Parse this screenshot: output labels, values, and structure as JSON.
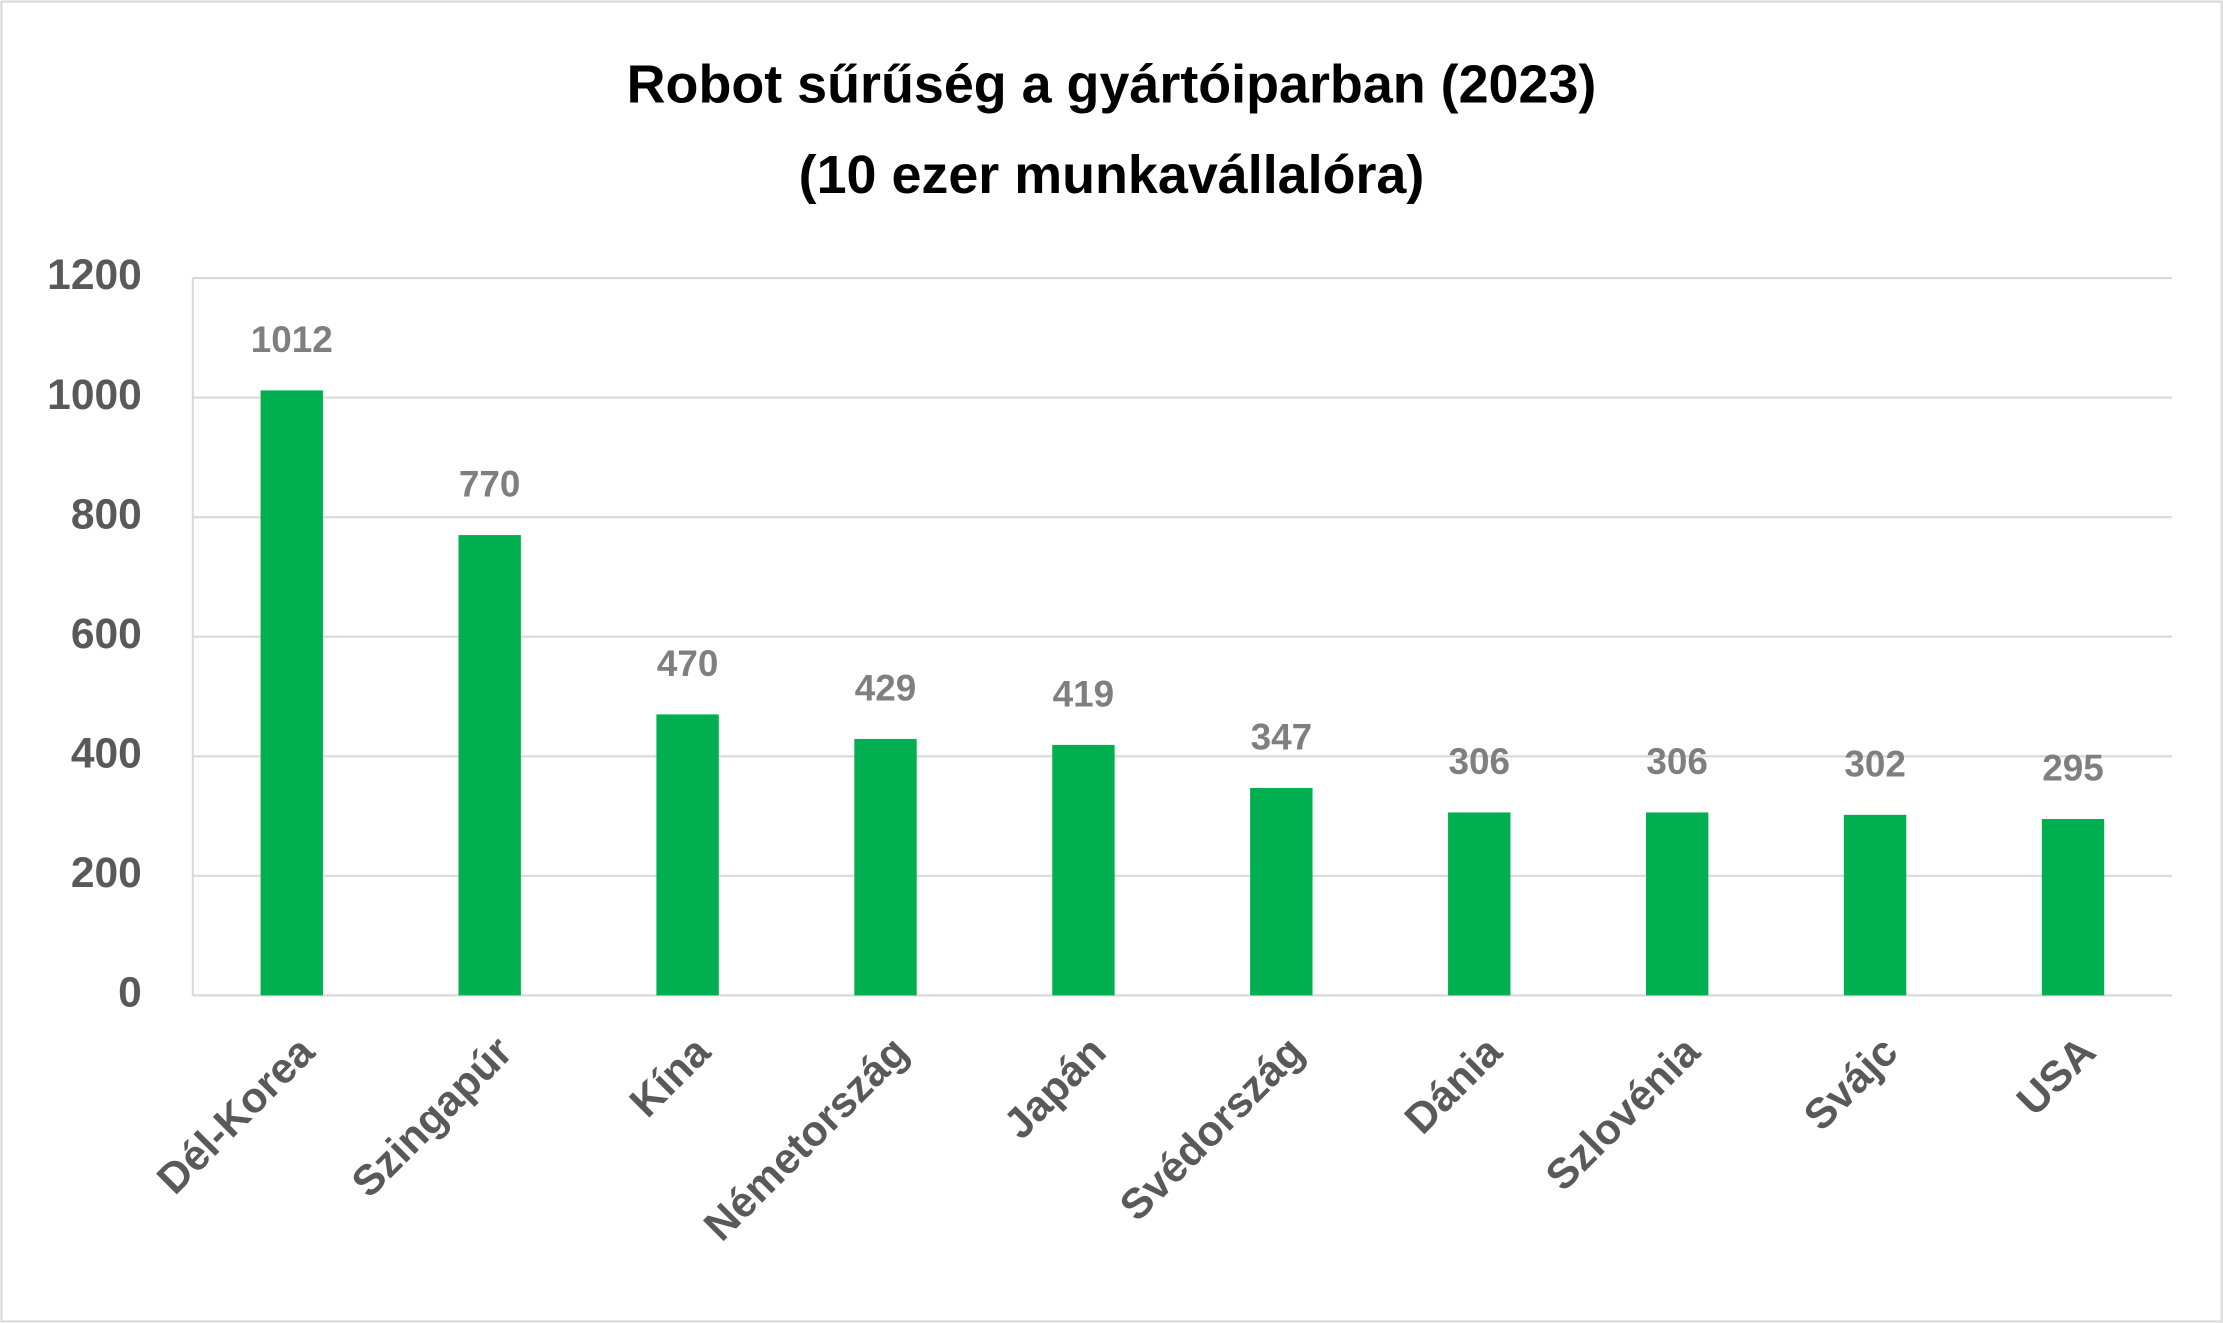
{
  "chart_data": {
    "type": "bar",
    "title": "Robot sűrűség a gyártóiparban (2023)",
    "subtitle": "(10 ezer munkavállalóra)",
    "categories": [
      "Dél-Korea",
      "Szingapúr",
      "Kína",
      "Németország",
      "Japán",
      "Svédország",
      "Dánia",
      "Szlovénia",
      "Svájc",
      "USA"
    ],
    "values": [
      1012,
      770,
      470,
      429,
      419,
      347,
      306,
      306,
      302,
      295
    ],
    "color": "#00b050",
    "ylim": [
      0,
      1200
    ],
    "yticks": [
      0,
      200,
      400,
      600,
      800,
      1000,
      1200
    ],
    "grid": true
  }
}
